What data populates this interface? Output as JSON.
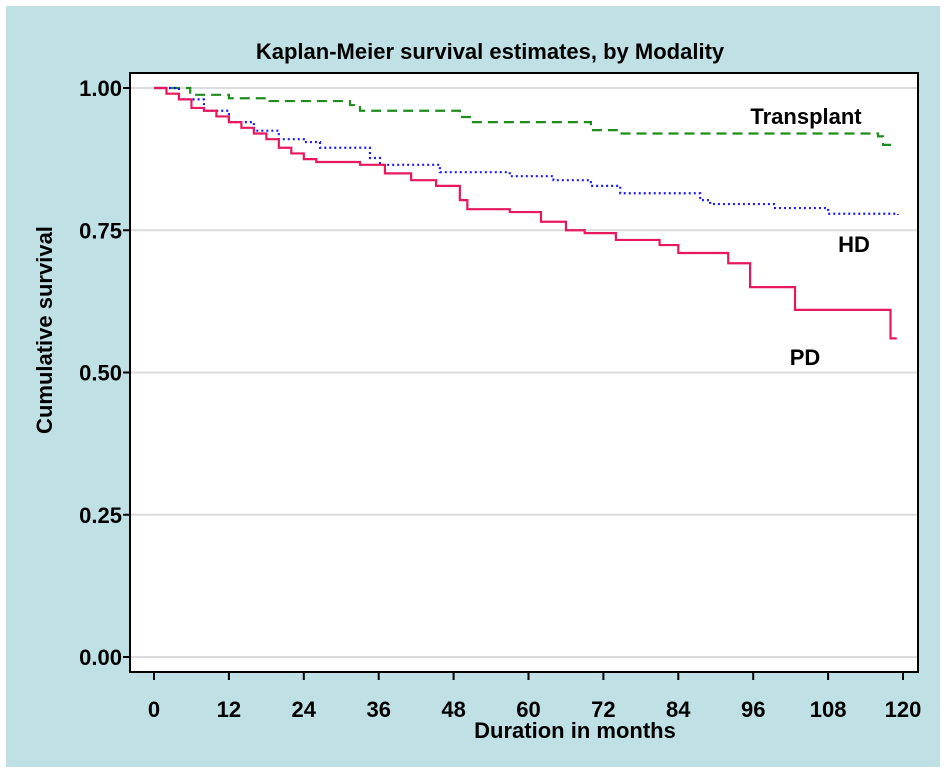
{
  "chart_data": {
    "type": "line",
    "step": true,
    "title": "Kaplan-Meier survival estimates, by Modality",
    "xlabel": "Duration in months",
    "ylabel": "Cumulative survival",
    "xlim": [
      0,
      120
    ],
    "ylim": [
      0,
      1
    ],
    "xticks": [
      0,
      12,
      24,
      36,
      48,
      60,
      72,
      84,
      96,
      108,
      120
    ],
    "yticks": [
      {
        "value": 0,
        "label": "0.00"
      },
      {
        "value": 0.25,
        "label": "0.25"
      },
      {
        "value": 0.5,
        "label": "0.50"
      },
      {
        "value": 0.75,
        "label": "0.75"
      },
      {
        "value": 1,
        "label": "1.00"
      }
    ],
    "grid": true,
    "series": [
      {
        "name": "Transplant",
        "color": "#1e8c1e",
        "dash": "10,6",
        "x": [
          0,
          5.8,
          12,
          18.5,
          31.4,
          33,
          49,
          50.6,
          70,
          74.7,
          116,
          116.8,
          118.4
        ],
        "values": [
          1,
          0.988,
          0.982,
          0.977,
          0.97,
          0.96,
          0.949,
          0.94,
          0.926,
          0.92,
          0.915,
          0.9,
          0.9
        ]
      },
      {
        "name": "HD",
        "color": "#1a1aff",
        "dash": "2,3",
        "x": [
          0,
          4,
          8,
          12,
          16,
          20,
          24,
          26.6,
          34.6,
          36.2,
          45.8,
          57,
          64,
          70,
          74.7,
          87.5,
          89.1,
          99.5,
          108,
          119.2
        ],
        "values": [
          1,
          0.98,
          0.96,
          0.94,
          0.925,
          0.91,
          0.905,
          0.895,
          0.877,
          0.865,
          0.852,
          0.845,
          0.838,
          0.828,
          0.815,
          0.803,
          0.796,
          0.789,
          0.779,
          0.777
        ]
      },
      {
        "name": "PD",
        "color": "#e8185f",
        "dash": "",
        "x": [
          0,
          2,
          4,
          6,
          8,
          10,
          12,
          14,
          16,
          18,
          20,
          22,
          24,
          26,
          33,
          37,
          41.2,
          45.2,
          49,
          50.2,
          57,
          62,
          66,
          69,
          74,
          81,
          84,
          92,
          95.5,
          102.7,
          118,
          119
        ],
        "values": [
          1,
          0.99,
          0.98,
          0.965,
          0.96,
          0.95,
          0.94,
          0.93,
          0.92,
          0.91,
          0.895,
          0.885,
          0.875,
          0.87,
          0.865,
          0.85,
          0.838,
          0.828,
          0.803,
          0.787,
          0.782,
          0.765,
          0.75,
          0.745,
          0.733,
          0.724,
          0.71,
          0.692,
          0.65,
          0.61,
          0.56,
          0.56
        ]
      }
    ]
  }
}
